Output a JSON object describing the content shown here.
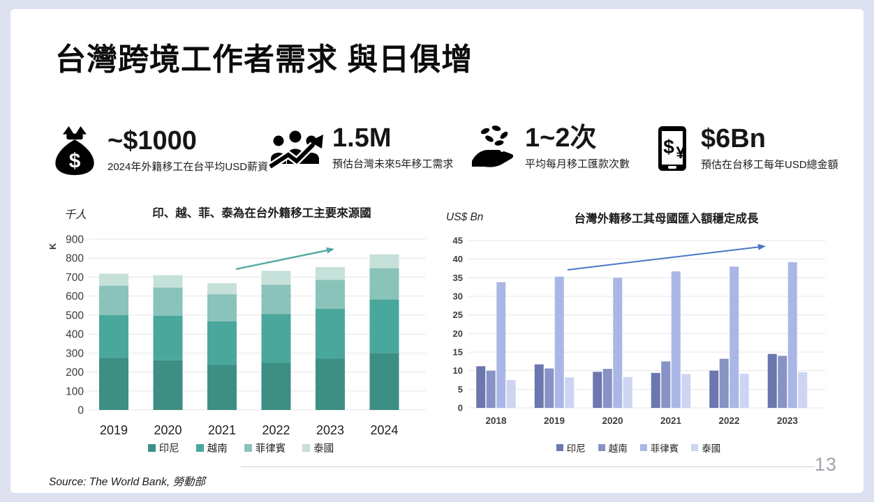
{
  "page": {
    "title": "台灣跨境工作者需求 與日俱增"
  },
  "stats": [
    {
      "icon": "money-bag-icon",
      "value": "~$1000",
      "caption": "2024年外籍移工在台平均USD薪資"
    },
    {
      "icon": "people-growth-icon",
      "value": "1.5M",
      "caption": "預估台灣未來5年移工需求"
    },
    {
      "icon": "hand-coins-icon",
      "value": "1~2次",
      "caption": "平均每月移工匯款次數"
    },
    {
      "icon": "phone-currency-icon",
      "value": "$6Bn",
      "caption": "預估在台移工每年USD總金額"
    }
  ],
  "chart_data": [
    {
      "type": "bar",
      "variant": "stacked",
      "title": "印、越、菲、泰為在台外籍移工主要來源國",
      "unit_label": "千人",
      "ylabel": "K",
      "categories": [
        "2019",
        "2020",
        "2021",
        "2022",
        "2023",
        "2024"
      ],
      "series": [
        {
          "name": "印尼",
          "color": "#3d8e83",
          "values": [
            275,
            262,
            237,
            248,
            270,
            300
          ]
        },
        {
          "name": "越南",
          "color": "#4aa79b",
          "values": [
            225,
            235,
            230,
            257,
            263,
            282
          ]
        },
        {
          "name": "菲律賓",
          "color": "#8ac3ba",
          "values": [
            155,
            148,
            143,
            155,
            152,
            165
          ]
        },
        {
          "name": "泰國",
          "color": "#c6e0da",
          "values": [
            63,
            65,
            58,
            73,
            68,
            73
          ]
        }
      ],
      "ylim": [
        0,
        900
      ],
      "ytick_step": 100,
      "grid": true,
      "legend_position": "bottom",
      "trend_arrow": true,
      "trend_arrow_color": "#53a8a2"
    },
    {
      "type": "bar",
      "variant": "grouped",
      "title": "台灣外籍移工其母國匯入額穩定成長",
      "unit_label": "US$ Bn",
      "ylabel": "",
      "categories": [
        "2018",
        "2019",
        "2020",
        "2021",
        "2022",
        "2023"
      ],
      "series": [
        {
          "name": "印尼",
          "color": "#6b77ae",
          "values": [
            11.2,
            11.7,
            9.7,
            9.4,
            10.0,
            14.5
          ]
        },
        {
          "name": "越南",
          "color": "#8792c5",
          "values": [
            10.0,
            10.6,
            10.5,
            12.5,
            13.2,
            14.0
          ]
        },
        {
          "name": "菲律賓",
          "color": "#aab7e6",
          "values": [
            33.8,
            35.3,
            35.0,
            36.7,
            38.0,
            39.2
          ]
        },
        {
          "name": "泰國",
          "color": "#cdd5f2",
          "values": [
            7.5,
            8.2,
            8.3,
            9.1,
            9.2,
            9.6
          ]
        }
      ],
      "ylim": [
        0,
        45
      ],
      "ytick_step": 5,
      "grid": true,
      "legend_position": "bottom",
      "trend_arrow": true,
      "trend_arrow_color": "#4a76c9"
    }
  ],
  "footer": {
    "source": "Source:  The World Bank, 勞動部",
    "page_number": "13"
  }
}
